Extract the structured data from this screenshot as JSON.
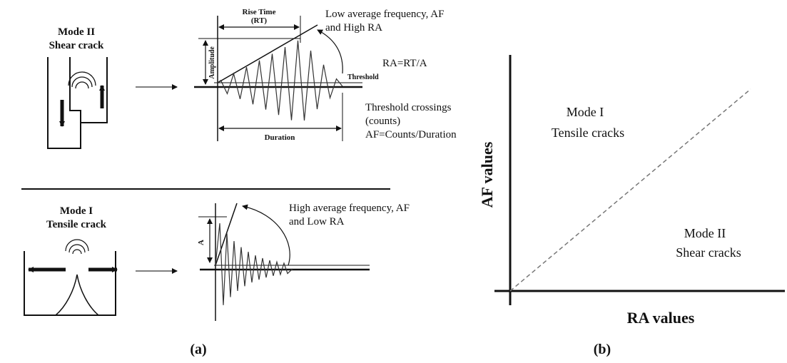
{
  "panel_a": {
    "label": "(a)",
    "mode2": {
      "title_line1": "Mode II",
      "title_line2": "Shear crack",
      "rise_time_line1": "Rise Time",
      "rise_time_line2": "(RT)",
      "amplitude_label": "Amplitude",
      "threshold_label": "Threshold",
      "duration_label": "Duration",
      "annotation_line1": "Low average frequency, AF",
      "annotation_line2": "and High RA",
      "ra_formula": "RA=RT/A",
      "crossings_line1": "Threshold crossings",
      "crossings_line2": "(counts)",
      "af_formula": "AF=Counts/Duration"
    },
    "mode1": {
      "title_line1": "Mode I",
      "title_line2": "Tensile crack",
      "amplitude_label": "A",
      "annotation_line1": "High average frequency, AF",
      "annotation_line2": "and Low RA"
    }
  },
  "panel_b": {
    "label": "(b)",
    "y_axis_label": "AF values",
    "x_axis_label": "RA values",
    "region_upper_line1": "Mode I",
    "region_upper_line2": "Tensile cracks",
    "region_lower_line1": "Mode II",
    "region_lower_line2": "Shear cracks"
  }
}
